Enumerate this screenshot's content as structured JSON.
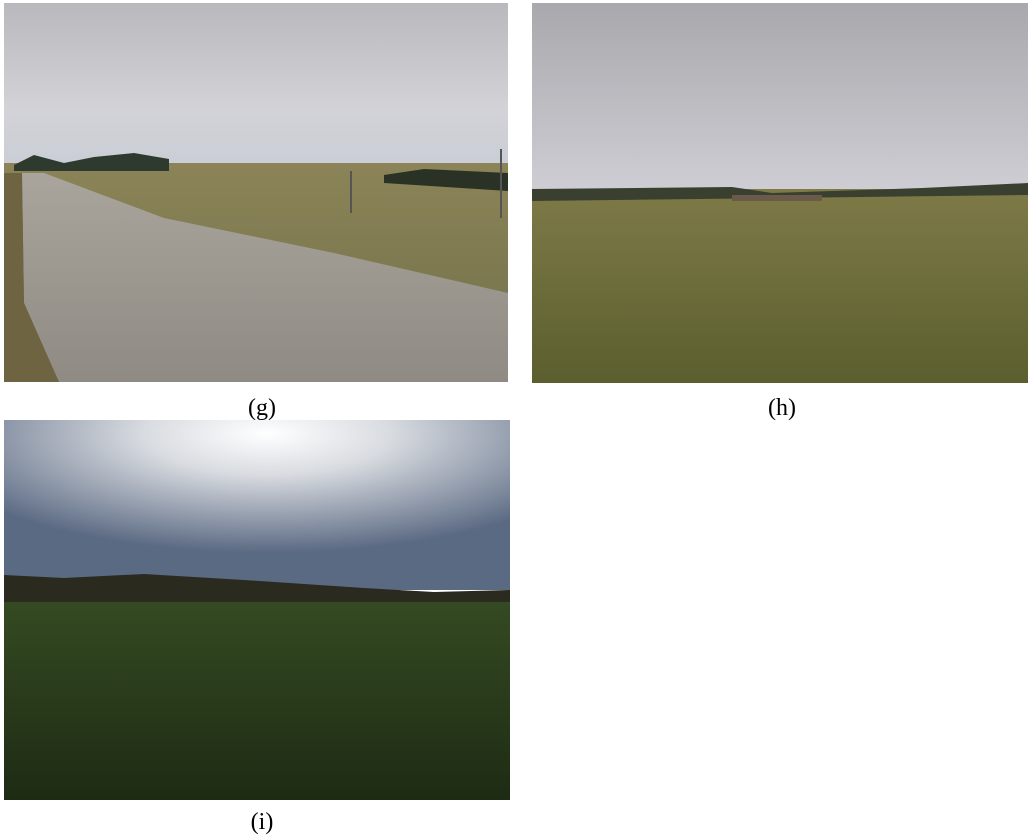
{
  "panels": [
    {
      "caption": "(g)"
    },
    {
      "caption": "(h)"
    },
    {
      "caption": "(i)"
    }
  ]
}
